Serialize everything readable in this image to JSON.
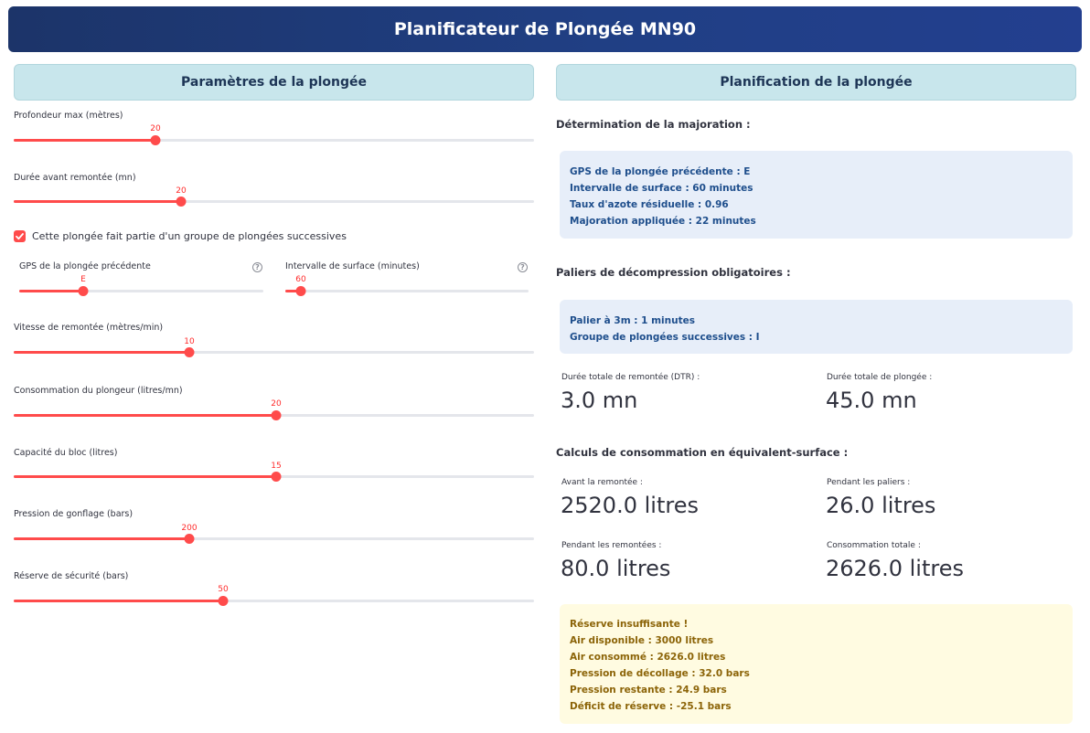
{
  "app": {
    "title": "Planificateur de Plongée MN90"
  },
  "left": {
    "header": "Paramètres de la plongée",
    "sliders": [
      {
        "label": "Profondeur max (mètres)",
        "value": "20",
        "fraction": 0.2727
      },
      {
        "label": "Durée avant remontée (mn)",
        "value": "20",
        "fraction": 0.3222
      },
      {
        "label": "Vitesse de remontée (mètres/min)",
        "value": "10",
        "fraction": 0.3371
      },
      {
        "label": "Consommation du plongeur (litres/mn)",
        "value": "20",
        "fraction": 0.5037
      },
      {
        "label": "Capacité du bloc (litres)",
        "value": "15",
        "fraction": 0.5037
      },
      {
        "label": "Pression de gonflage (bars)",
        "value": "200",
        "fraction": 0.3371
      },
      {
        "label": "Réserve de sécurité (bars)",
        "value": "50",
        "fraction": 0.403
      }
    ],
    "checkbox": {
      "label": "Cette plongée fait partie d'un groupe de plongées successives",
      "checked": true
    },
    "sub_sliders": [
      {
        "label": "GPS de la plongée précédente",
        "value": "E",
        "fraction": 0.2639
      },
      {
        "label": "Intervalle de surface (minutes)",
        "value": "60",
        "fraction": 0.0638
      }
    ]
  },
  "right": {
    "header": "Planification de la plongée",
    "majoration": {
      "heading": "Détermination de la majoration :",
      "lines": [
        "GPS de la plongée précédente : E",
        "Intervalle de surface : 60 minutes",
        "Taux d'azote résiduelle : 0.96",
        "Majoration appliquée : 22 minutes"
      ]
    },
    "paliers": {
      "heading": "Paliers de décompression obligatoires :",
      "lines": [
        "Palier à 3m : 1 minutes",
        "Groupe de plongées successives : I"
      ]
    },
    "durations": [
      {
        "label": "Durée totale de remontée (DTR) :",
        "value": "3.0 mn"
      },
      {
        "label": "Durée totale de plongée :",
        "value": "45.0 mn"
      }
    ],
    "consumption": {
      "heading": "Calculs de consommation en équivalent-surface :",
      "metrics": [
        {
          "label": "Avant la remontée :",
          "value": "2520.0 litres"
        },
        {
          "label": "Pendant les paliers :",
          "value": "26.0 litres"
        },
        {
          "label": "Pendant les remontées :",
          "value": "80.0 litres"
        },
        {
          "label": "Consommation totale :",
          "value": "2626.0 litres"
        }
      ]
    },
    "warning": {
      "lines": [
        "Réserve insuffisante !",
        "Air disponible : 3000 litres",
        "Air consommé : 2626.0 litres",
        "Pression de décollage : 32.0 bars",
        "Pression restante : 24.9 bars",
        "Déficit de réserve : -25.1 bars"
      ]
    }
  },
  "colors": {
    "accent": "#ff4b4b",
    "title_bg": "#203f84",
    "header_bg": "#c8e6ec",
    "info_bg": "#e7eef9",
    "warn_bg": "#fffbe1"
  },
  "icons": {
    "checkbox": "check-icon",
    "help": "help-circle-icon"
  }
}
